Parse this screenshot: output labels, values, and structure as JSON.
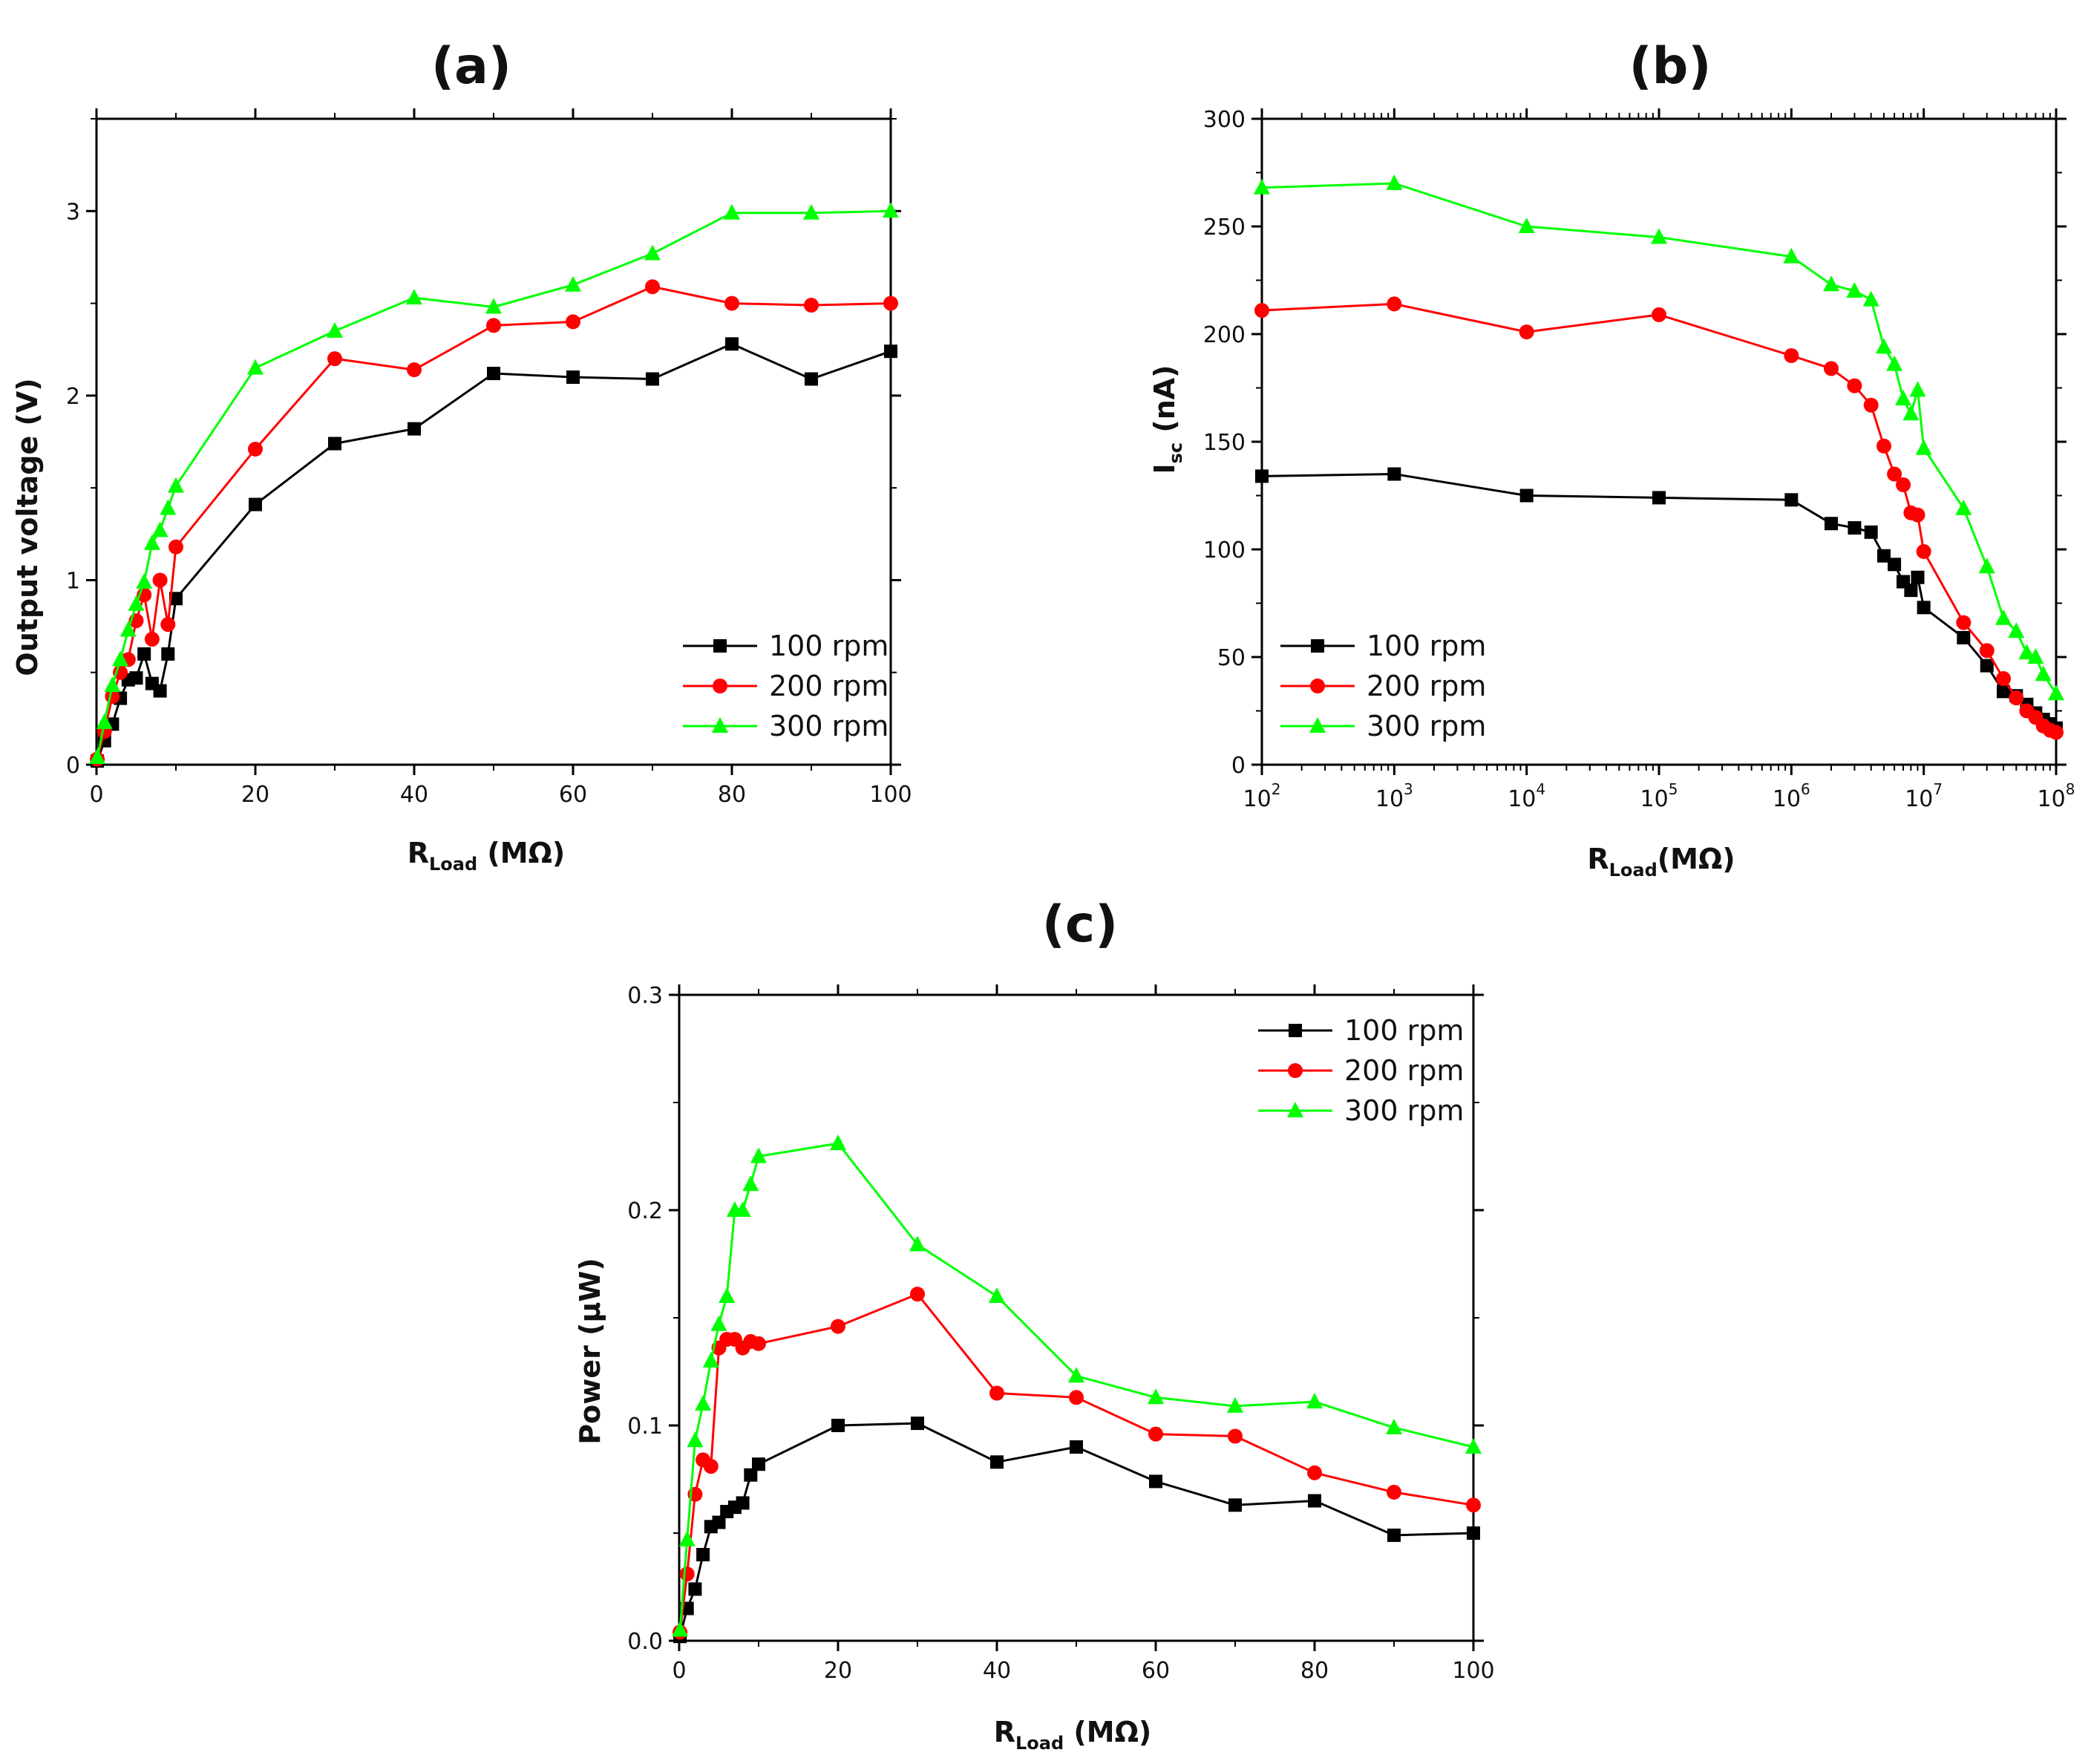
{
  "chart_data": [
    {
      "id": "a",
      "type": "line",
      "title": "(a)",
      "xlabel_main": "R",
      "xlabel_sub": "Load",
      "xlabel_unit": " (MΩ)",
      "ylabel": "Output voltage (V)",
      "xlim": [
        0,
        100
      ],
      "ylim": [
        0,
        3.5
      ],
      "xscale": "linear",
      "xticks": [
        0,
        20,
        40,
        60,
        80,
        100
      ],
      "yticks": [
        0,
        1,
        2,
        3
      ],
      "xtick_labels": [
        "0",
        "20",
        "40",
        "60",
        "80",
        "100"
      ],
      "ytick_labels": [
        "0",
        "1",
        "2",
        "3"
      ],
      "legend_position": "bottom-right",
      "series": [
        {
          "name": "100 rpm",
          "color": "#000000",
          "marker": "square",
          "x": [
            0.1,
            1,
            2,
            3,
            4,
            5,
            6,
            7,
            8,
            9,
            10,
            20,
            30,
            40,
            50,
            60,
            70,
            80,
            90,
            100
          ],
          "y": [
            0.02,
            0.13,
            0.22,
            0.36,
            0.46,
            0.47,
            0.6,
            0.44,
            0.4,
            0.6,
            0.9,
            1.41,
            1.74,
            1.82,
            2.12,
            2.1,
            2.09,
            2.28,
            2.09,
            2.24
          ]
        },
        {
          "name": "200 rpm",
          "color": "#ff0000",
          "marker": "circle",
          "x": [
            0.1,
            1,
            2,
            3,
            4,
            5,
            6,
            7,
            8,
            9,
            10,
            20,
            30,
            40,
            50,
            60,
            70,
            80,
            90,
            100
          ],
          "y": [
            0.03,
            0.18,
            0.37,
            0.5,
            0.57,
            0.78,
            0.92,
            0.68,
            1.0,
            0.76,
            1.18,
            1.71,
            2.2,
            2.14,
            2.38,
            2.4,
            2.59,
            2.5,
            2.49,
            2.5
          ]
        },
        {
          "name": "300 rpm",
          "color": "#00ff00",
          "marker": "triangle",
          "x": [
            0.1,
            1,
            2,
            3,
            4,
            5,
            6,
            7,
            8,
            9,
            10,
            20,
            30,
            40,
            50,
            60,
            70,
            80,
            90,
            100
          ],
          "y": [
            0.04,
            0.23,
            0.43,
            0.57,
            0.73,
            0.87,
            0.99,
            1.2,
            1.27,
            1.39,
            1.51,
            2.15,
            2.35,
            2.53,
            2.48,
            2.6,
            2.77,
            2.99,
            2.99,
            3.0
          ]
        }
      ]
    },
    {
      "id": "b",
      "type": "line",
      "title": "(b)",
      "xlabel_main": "R",
      "xlabel_sub": "Load",
      "xlabel_unit": "(MΩ)",
      "ylabel_main": "I",
      "ylabel_sub": "sc",
      "ylabel_unit": " (nA)",
      "xlim": [
        100,
        100000000
      ],
      "ylim": [
        0,
        300
      ],
      "xscale": "log",
      "xticks": [
        100,
        1000,
        10000,
        100000,
        1000000,
        10000000,
        100000000
      ],
      "xtick_base": [
        "10",
        "10",
        "10",
        "10",
        "10",
        "10",
        "10"
      ],
      "xtick_exp": [
        "2",
        "3",
        "4",
        "5",
        "6",
        "7",
        "8"
      ],
      "yticks": [
        0,
        50,
        100,
        150,
        200,
        250,
        300
      ],
      "ytick_labels": [
        "0",
        "50",
        "100",
        "150",
        "200",
        "250",
        "300"
      ],
      "legend_position": "bottom-left",
      "series": [
        {
          "name": "100 rpm",
          "color": "#000000",
          "marker": "square",
          "x": [
            100,
            1000,
            10000,
            100000,
            1000000,
            2000000,
            3000000,
            4000000,
            5000000,
            6000000,
            7000000,
            8000000,
            9000000,
            10000000,
            20000000,
            30000000,
            40000000,
            50000000,
            60000000,
            70000000,
            80000000,
            90000000,
            100000000
          ],
          "y": [
            134,
            135,
            125,
            124,
            123,
            112,
            110,
            108,
            97,
            93,
            85,
            81,
            87,
            73,
            59,
            46,
            34,
            32,
            28,
            24,
            21,
            19,
            17
          ]
        },
        {
          "name": "200 rpm",
          "color": "#ff0000",
          "marker": "circle",
          "x": [
            100,
            1000,
            10000,
            100000,
            1000000,
            2000000,
            3000000,
            4000000,
            5000000,
            6000000,
            7000000,
            8000000,
            9000000,
            10000000,
            20000000,
            30000000,
            40000000,
            50000000,
            60000000,
            70000000,
            80000000,
            90000000,
            100000000
          ],
          "y": [
            211,
            214,
            201,
            209,
            190,
            184,
            176,
            167,
            148,
            135,
            130,
            117,
            116,
            99,
            66,
            53,
            40,
            31,
            25,
            22,
            18,
            16,
            15
          ]
        },
        {
          "name": "300 rpm",
          "color": "#00ff00",
          "marker": "triangle",
          "x": [
            100,
            1000,
            10000,
            100000,
            1000000,
            2000000,
            3000000,
            4000000,
            5000000,
            6000000,
            7000000,
            8000000,
            9000000,
            10000000,
            20000000,
            30000000,
            40000000,
            50000000,
            60000000,
            70000000,
            80000000,
            100000000
          ],
          "y": [
            268,
            270,
            250,
            245,
            236,
            223,
            220,
            216,
            194,
            186,
            170,
            163,
            174,
            147,
            119,
            92,
            68,
            62,
            52,
            50,
            42,
            33
          ]
        }
      ]
    },
    {
      "id": "c",
      "type": "line",
      "title": "(c)",
      "xlabel_main": "R",
      "xlabel_sub": "Load",
      "xlabel_unit": " (MΩ)",
      "ylabel": "Power (μW)",
      "xlim": [
        0,
        100
      ],
      "ylim": [
        0,
        0.3
      ],
      "xscale": "linear",
      "xticks": [
        0,
        20,
        40,
        60,
        80,
        100
      ],
      "yticks": [
        0,
        0.1,
        0.2,
        0.3
      ],
      "xtick_labels": [
        "0",
        "20",
        "40",
        "60",
        "80",
        "100"
      ],
      "ytick_labels": [
        "0.0",
        "0.1",
        "0.2",
        "0.3"
      ],
      "legend_position": "top-right",
      "series": [
        {
          "name": "100 rpm",
          "color": "#000000",
          "marker": "square",
          "x": [
            0.1,
            1,
            2,
            3,
            4,
            5,
            6,
            7,
            8,
            9,
            10,
            20,
            30,
            40,
            50,
            60,
            70,
            80,
            90,
            100
          ],
          "y": [
            0.002,
            0.015,
            0.024,
            0.04,
            0.053,
            0.055,
            0.06,
            0.062,
            0.064,
            0.077,
            0.082,
            0.1,
            0.101,
            0.083,
            0.09,
            0.074,
            0.063,
            0.065,
            0.049,
            0.05
          ]
        },
        {
          "name": "200 rpm",
          "color": "#ff0000",
          "marker": "circle",
          "x": [
            0.1,
            1,
            2,
            3,
            4,
            5,
            6,
            7,
            8,
            9,
            10,
            20,
            30,
            40,
            50,
            60,
            70,
            80,
            90,
            100
          ],
          "y": [
            0.004,
            0.031,
            0.068,
            0.084,
            0.081,
            0.136,
            0.14,
            0.14,
            0.136,
            0.139,
            0.138,
            0.146,
            0.161,
            0.115,
            0.113,
            0.096,
            0.095,
            0.078,
            0.069,
            0.063
          ]
        },
        {
          "name": "300 rpm",
          "color": "#00ff00",
          "marker": "triangle",
          "x": [
            0.1,
            1,
            2,
            3,
            4,
            5,
            6,
            7,
            8,
            9,
            10,
            20,
            30,
            40,
            50,
            60,
            70,
            80,
            90,
            100
          ],
          "y": [
            0.005,
            0.047,
            0.093,
            0.11,
            0.13,
            0.147,
            0.16,
            0.2,
            0.2,
            0.212,
            0.225,
            0.231,
            0.184,
            0.16,
            0.123,
            0.113,
            0.109,
            0.111,
            0.099,
            0.09
          ]
        }
      ]
    }
  ]
}
